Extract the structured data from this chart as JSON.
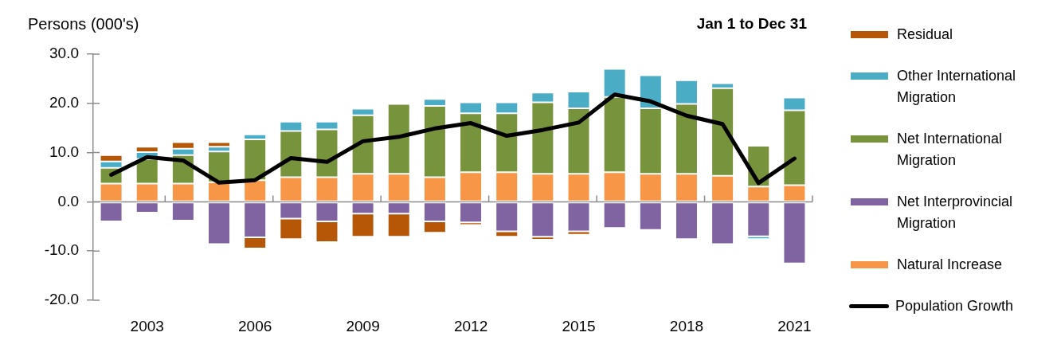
{
  "chart_data": {
    "type": "bar",
    "stacked": true,
    "ylabel": "Persons (000's)",
    "subtitle": "Jan 1 to Dec 31",
    "categories": [
      null,
      "2003",
      null,
      null,
      "2006",
      null,
      null,
      "2009",
      null,
      null,
      "2012",
      null,
      null,
      "2015",
      null,
      null,
      "2018",
      null,
      null,
      "2021"
    ],
    "ylim": [
      -20,
      30
    ],
    "yticks": [
      {
        "value": -20,
        "label": "-20.0"
      },
      {
        "value": -10,
        "label": "-10.0"
      },
      {
        "value": 0,
        "label": "0.0"
      },
      {
        "value": 10,
        "label": "10.0"
      },
      {
        "value": 20,
        "label": "20.0"
      },
      {
        "value": 30,
        "label": "30.0"
      }
    ],
    "grid": false,
    "legend": "right",
    "marker": "none",
    "ref_lines": [
      {
        "axis": "y",
        "value": 0,
        "color": "#8c8c8c"
      }
    ],
    "series": [
      {
        "name": "Natural Increase",
        "color": "#f79646",
        "values": [
          3.7,
          3.7,
          3.7,
          4.0,
          4.4,
          5.0,
          5.0,
          5.7,
          5.7,
          5.0,
          6.0,
          6.0,
          5.7,
          5.7,
          6.0,
          5.7,
          5.7,
          5.3,
          3.1,
          3.4
        ]
      },
      {
        "name": "Net Interprovincial Migration",
        "color": "#8064a2",
        "values": [
          -4.0,
          -2.2,
          -3.8,
          -8.6,
          -7.2,
          -3.4,
          -4.0,
          -2.4,
          -2.4,
          -4.0,
          -4.2,
          -6.0,
          -7.1,
          -6.0,
          -5.3,
          -5.7,
          -7.6,
          -8.6,
          -7.0,
          -12.5
        ]
      },
      {
        "name": "Net International Migration",
        "color": "#77933c",
        "values": [
          3.2,
          5.0,
          5.8,
          6.2,
          8.3,
          9.4,
          9.7,
          11.9,
          14.2,
          14.5,
          12.0,
          12.0,
          14.5,
          13.3,
          15.3,
          13.3,
          14.2,
          17.8,
          8.3,
          15.2
        ]
      },
      {
        "name": "Other International Migration",
        "color": "#4bacc6",
        "values": [
          1.3,
          1.4,
          1.3,
          1.0,
          1.0,
          1.9,
          1.6,
          1.3,
          null,
          1.4,
          2.2,
          2.2,
          2.0,
          3.4,
          5.7,
          6.7,
          4.8,
          1.0,
          -0.6,
          2.6
        ]
      },
      {
        "name": "Residual",
        "color": "#b65708",
        "values": [
          1.3,
          1.1,
          1.3,
          0.9,
          -2.3,
          -4.2,
          -4.2,
          -4.7,
          -4.7,
          -2.3,
          -0.5,
          -1.1,
          -0.6,
          -0.7,
          null,
          null,
          null,
          null,
          null,
          null
        ]
      },
      {
        "name": "Population Growth",
        "type": "line",
        "color": "#000000",
        "values": [
          5.5,
          9.1,
          8.4,
          3.9,
          4.4,
          8.9,
          8.1,
          12.3,
          13.2,
          14.9,
          16.0,
          13.4,
          14.6,
          16.1,
          21.8,
          20.4,
          17.5,
          15.8,
          3.8,
          8.8
        ]
      }
    ]
  }
}
